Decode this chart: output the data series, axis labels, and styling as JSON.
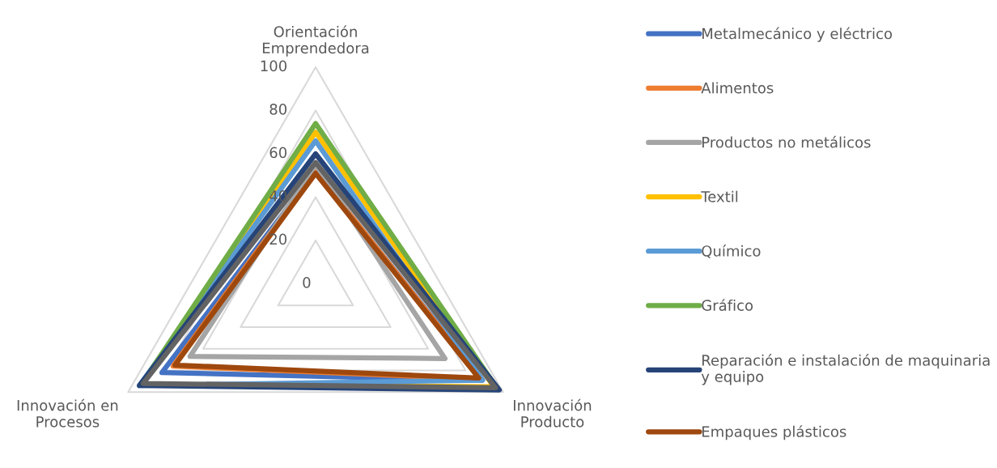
{
  "chart_data": {
    "type": "radar",
    "categories": [
      "Orientación\nEmprendedora",
      "Innovación\nProducto",
      "Innovación en\nProcesos"
    ],
    "ylim": [
      0,
      100
    ],
    "yticks": [
      0,
      20,
      40,
      60,
      80,
      100
    ],
    "grid": true,
    "legend": "right",
    "series": [
      {
        "name": "Metalmecánico y eléctrico",
        "color": "#4472c4",
        "values": [
          52,
          89,
          82
        ]
      },
      {
        "name": "Alimentos",
        "color": "#ed7d31",
        "values": [
          52,
          88,
          76
        ]
      },
      {
        "name": "Productos no metálicos",
        "color": "#a5a5a5",
        "values": [
          55,
          69,
          67
        ]
      },
      {
        "name": "Textil",
        "color": "#ffc000",
        "values": [
          70,
          95,
          93
        ]
      },
      {
        "name": "Químico",
        "color": "#5b9bd5",
        "values": [
          66,
          89,
          94
        ]
      },
      {
        "name": "Gráfico",
        "color": "#70ad47",
        "values": [
          74,
          97,
          93
        ]
      },
      {
        "name": "Reparación e instalación de maquinaria\ny equipo",
        "color": "#264478",
        "values": [
          60,
          98,
          94
        ]
      },
      {
        "name": "Empaques plásticos",
        "color": "#9e480e",
        "values": [
          51,
          87,
          75
        ]
      },
      {
        "color": "#636363",
        "values": [
          56,
          96,
          92
        ]
      }
    ]
  }
}
